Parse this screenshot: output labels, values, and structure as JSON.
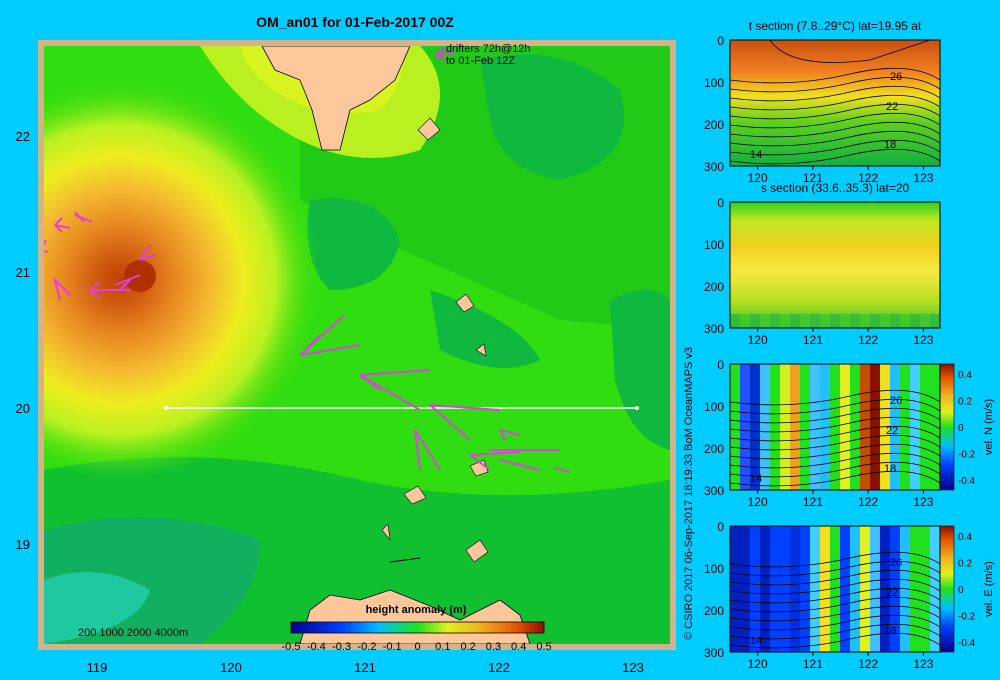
{
  "main_map": {
    "title": "OM_an01 for 01-Feb-2017 00Z",
    "drifters_label_1": "drifters 72h@12h",
    "drifters_label_2": "to 01-Feb 12Z",
    "x_ticks": [
      "119",
      "120",
      "121",
      "122",
      "123"
    ],
    "y_ticks": [
      "22",
      "21",
      "20",
      "19"
    ],
    "depth_label": "200  1000  2000  4000m",
    "colorbar_title": "height anomaly (m)",
    "colorbar_ticks": [
      "-0.5",
      "-0.4",
      "-0.3",
      "-0.2",
      "-0.1",
      "0",
      "0.1",
      "0.2",
      "0.3",
      "0.4",
      "0.5"
    ],
    "colors": {
      "land": "#fcc89b",
      "shelf": "#d2b48c",
      "drifter": "#e040e0",
      "background": "#00ccff"
    }
  },
  "credit": "© CSIRO 2017   06-Sep-2017 18:19:33 BoM OceanMAPS v3",
  "panels": [
    {
      "title": "t section (7.8..29°C) lat=19.95 at",
      "x_ticks": [
        "120",
        "121",
        "122",
        "123"
      ],
      "y_ticks": [
        "0",
        "100",
        "200",
        "300"
      ],
      "contour_labels": [
        "26",
        "22",
        "18",
        "14"
      ]
    },
    {
      "title": "s section (33.6..35.3) lat=20",
      "x_ticks": [
        "120",
        "121",
        "122",
        "123"
      ],
      "y_ticks": [
        "0",
        "100",
        "200",
        "300"
      ]
    },
    {
      "title": "",
      "x_ticks": [
        "120",
        "121",
        "122",
        "123"
      ],
      "y_ticks": [
        "0",
        "100",
        "200",
        "300"
      ],
      "contour_labels": [
        "26",
        "22",
        "18",
        "14"
      ],
      "colorbar_ticks": [
        "0.4",
        "0.2",
        "0",
        "-0.2",
        "-0.4"
      ],
      "colorbar_label": "vel. N (m/s)"
    },
    {
      "title": "",
      "x_ticks": [
        "120",
        "121",
        "122",
        "123"
      ],
      "y_ticks": [
        "0",
        "100",
        "200",
        "300"
      ],
      "contour_labels": [
        "26",
        "22",
        "18",
        "14"
      ],
      "colorbar_ticks": [
        "0.4",
        "0.2",
        "0",
        "-0.2",
        "-0.4"
      ],
      "colorbar_label": "vel. E (m/s)"
    }
  ],
  "chart_data": [
    {
      "type": "heatmap",
      "title": "OM_an01 for 01-Feb-2017 00Z",
      "x_range": [
        118.5,
        123.5
      ],
      "y_range": [
        18.2,
        22.7
      ],
      "value_label": "height anomaly (m)",
      "value_range": [
        -0.5,
        0.5
      ],
      "section_line": {
        "lat": 20,
        "lon": [
          119.5,
          123.2
        ]
      },
      "eddy_center": {
        "lon": 119.3,
        "lat": 20.95,
        "value": 0.45
      }
    },
    {
      "type": "heatmap",
      "title": "t section (7.8..29°C) lat=19.95 at",
      "x_range": [
        119.5,
        123.3
      ],
      "y_range": [
        300,
        0
      ],
      "value_range": [
        7.8,
        29
      ],
      "contours": [
        26,
        22,
        18,
        14
      ]
    },
    {
      "type": "heatmap",
      "title": "s section (33.6..35.3) lat=20",
      "x_range": [
        119.5,
        123.3
      ],
      "y_range": [
        300,
        0
      ],
      "value_range": [
        33.6,
        35.3
      ]
    },
    {
      "type": "heatmap",
      "x_range": [
        119.5,
        123.3
      ],
      "y_range": [
        300,
        0
      ],
      "value_label": "vel. N (m/s)",
      "value_range": [
        -0.4,
        0.4
      ]
    },
    {
      "type": "heatmap",
      "x_range": [
        119.5,
        123.3
      ],
      "y_range": [
        300,
        0
      ],
      "value_label": "vel. E (m/s)",
      "value_range": [
        -0.4,
        0.4
      ]
    }
  ]
}
